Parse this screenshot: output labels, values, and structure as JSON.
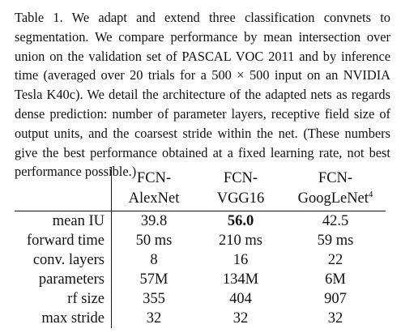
{
  "caption": "Table 1.  We adapt and extend three classification convnets to segmentation. We compare performance by mean intersection over union on the validation set of PASCAL VOC 2011 and by inference time (averaged over 20 trials for a 500 × 500 input on an NVIDIA Tesla K40c). We detail the architecture of the adapted nets as regards dense prediction: number of parameter layers, receptive field size of output units, and the coarsest stride within the net. (These numbers give the best performance obtained at a fixed learning rate, not best performance possible.)",
  "table": {
    "columns": [
      {
        "line1": "FCN-",
        "line2": "AlexNet",
        "footnote": ""
      },
      {
        "line1": "FCN-",
        "line2": "VGG16",
        "footnote": ""
      },
      {
        "line1": "FCN-",
        "line2": "GoogLeNet",
        "footnote": "4"
      }
    ],
    "rows": [
      {
        "label": "mean IU",
        "values": [
          "39.8",
          "56.0",
          "42.5"
        ]
      },
      {
        "label": "forward time",
        "values": [
          "50 ms",
          "210 ms",
          "59 ms"
        ]
      },
      {
        "label": "conv. layers",
        "values": [
          "8",
          "16",
          "22"
        ]
      },
      {
        "label": "parameters",
        "values": [
          "57M",
          "134M",
          "6M"
        ]
      },
      {
        "label": "rf size",
        "values": [
          "355",
          "404",
          "907"
        ]
      },
      {
        "label": "max stride",
        "values": [
          "32",
          "32",
          "32"
        ]
      }
    ]
  }
}
